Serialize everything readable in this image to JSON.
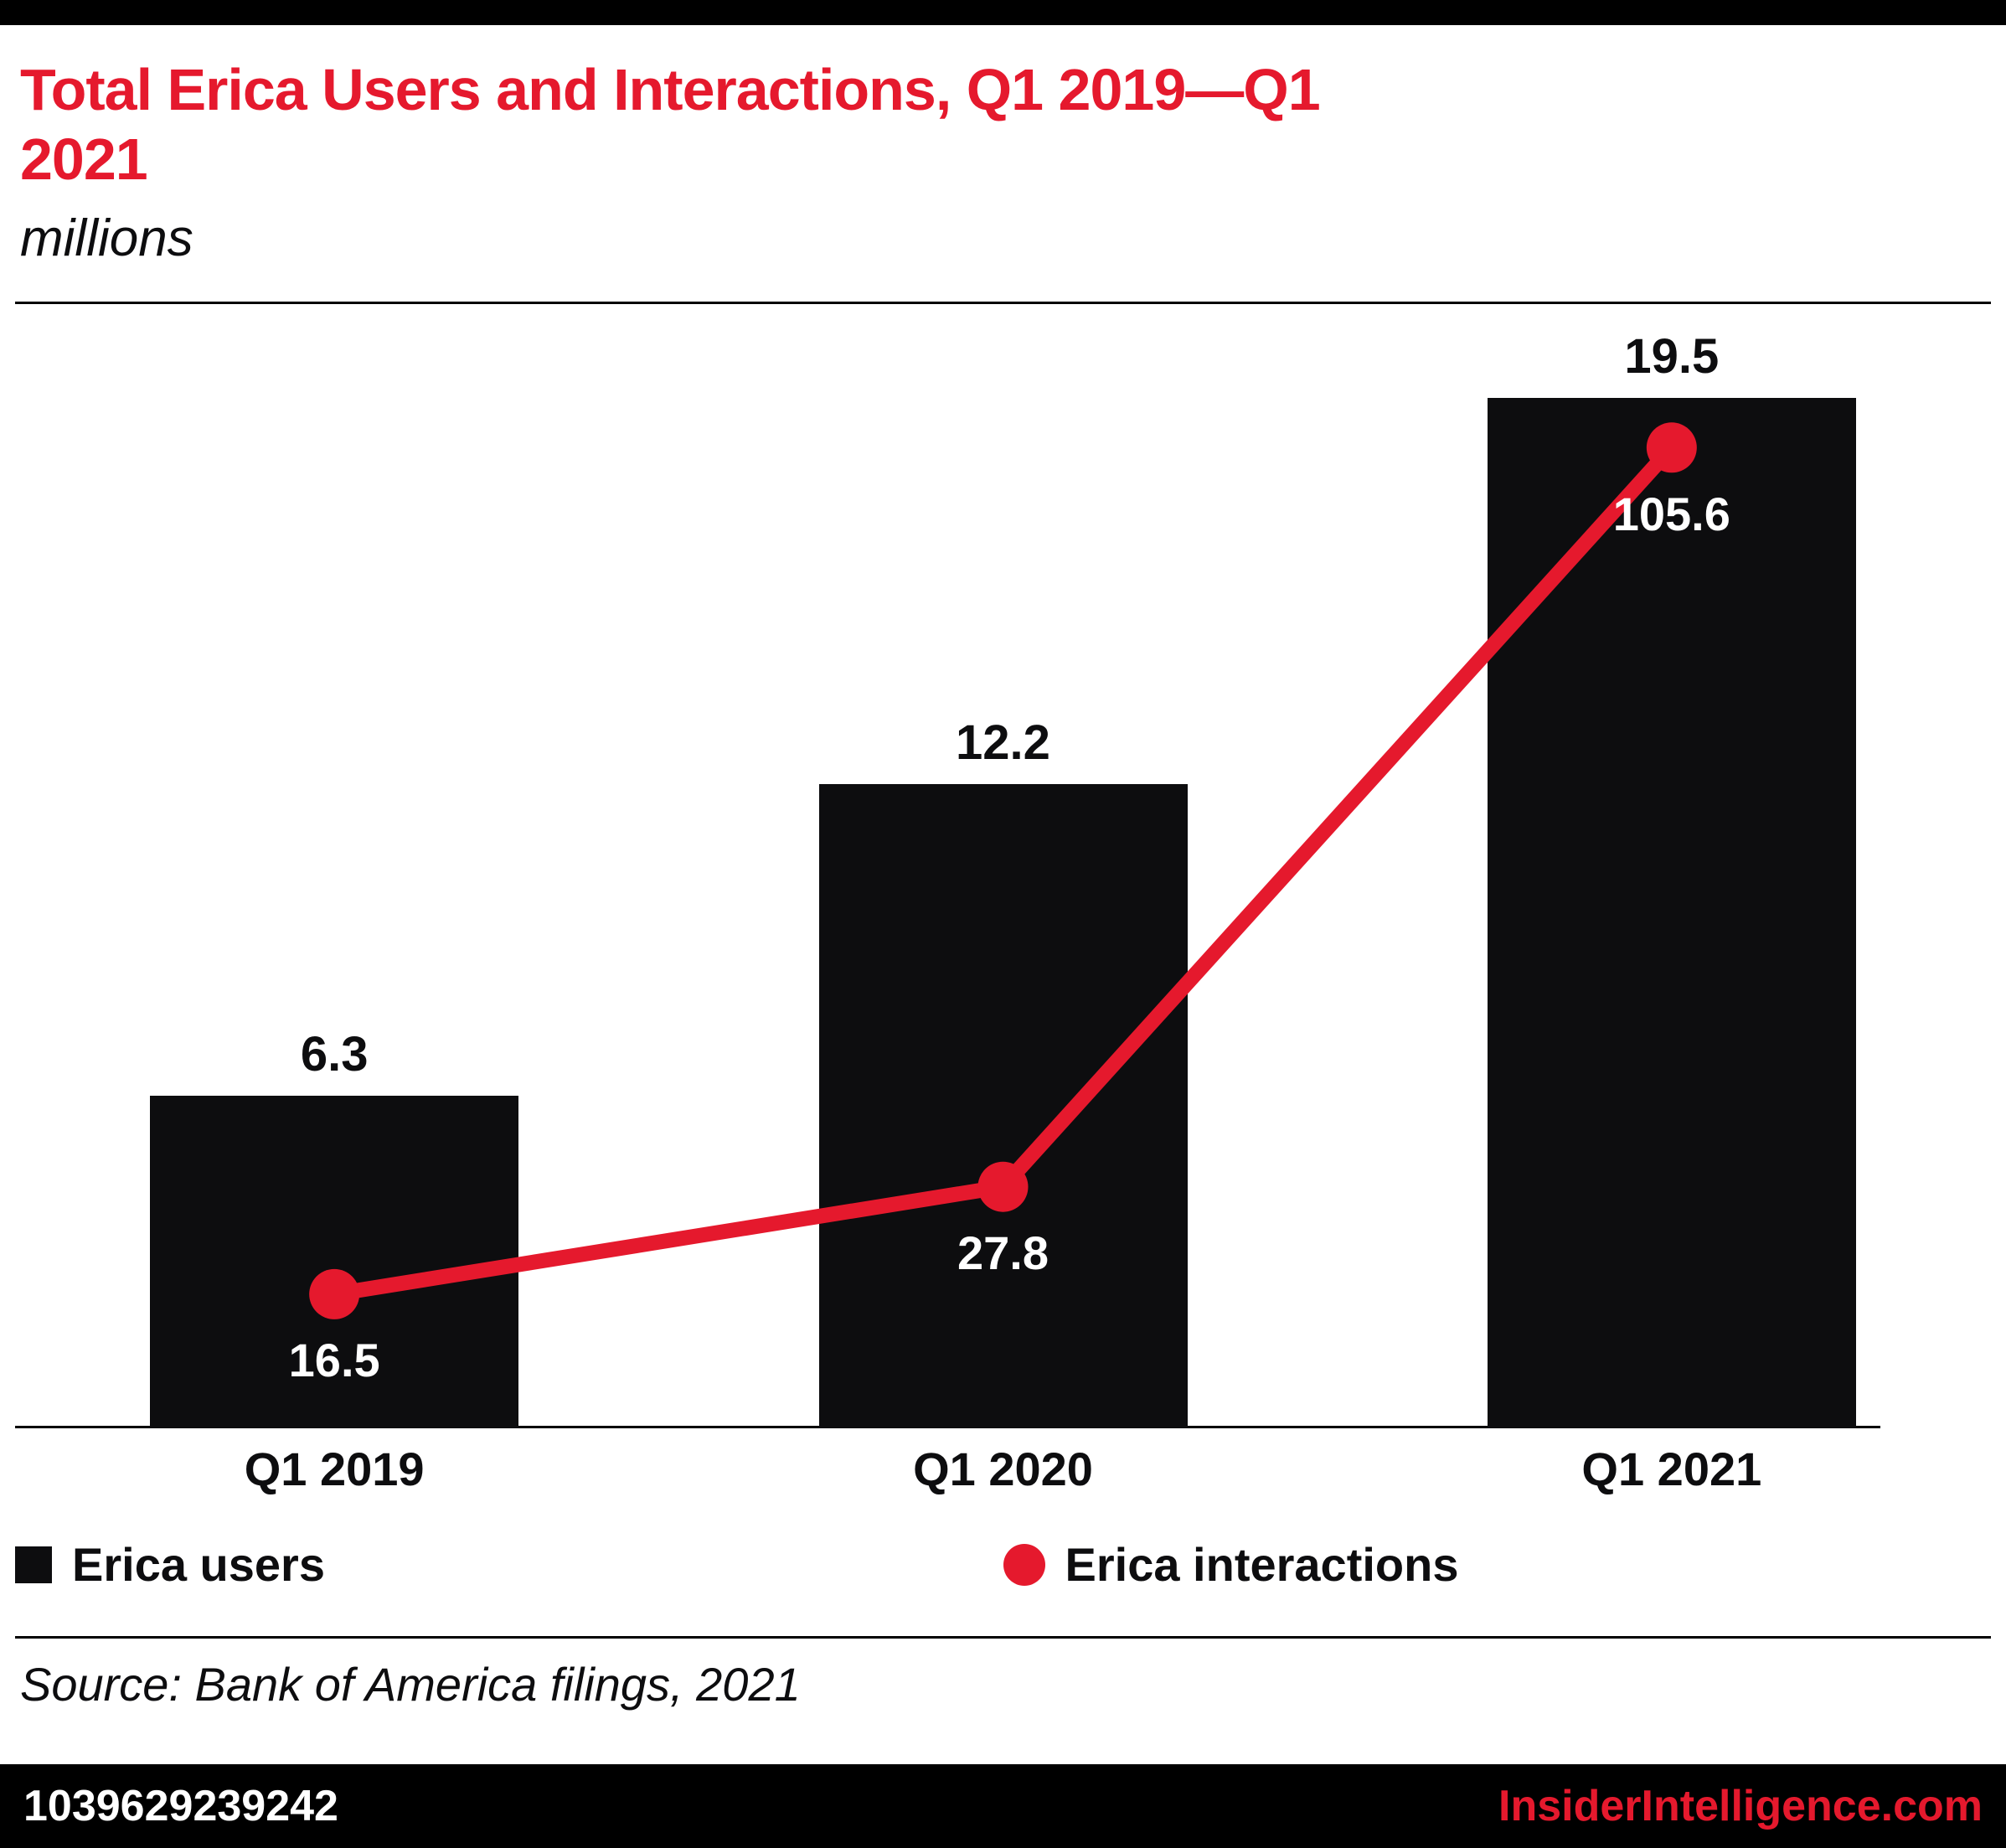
{
  "header": {
    "title": "Total Erica Users and Interactions, Q1 2019—Q1 2021",
    "subtitle": "millions"
  },
  "chart_data": {
    "type": "bar",
    "title": "Total Erica Users and Interactions, Q1 2019—Q1 2021",
    "units_note": "millions",
    "categories": [
      "Q1 2019",
      "Q1 2020",
      "Q1 2021"
    ],
    "series": [
      {
        "name": "Erica users",
        "type": "bar",
        "color": "#0d0d0f",
        "values": [
          6.3,
          12.2,
          19.5
        ],
        "ylim": [
          0,
          20.6
        ]
      },
      {
        "name": "Erica interactions",
        "type": "line",
        "color": "#e5192d",
        "values": [
          16.5,
          27.8,
          105.6
        ],
        "ylim": [
          0,
          117
        ]
      }
    ],
    "grid": false,
    "legend_position": "bottom",
    "value_labels": true
  },
  "legend": {
    "users_label": "Erica users",
    "interactions_label": "Erica interactions"
  },
  "source": {
    "text": "Source: Bank of America filings, 2021"
  },
  "footer": {
    "id": "1039629239242",
    "site": "InsiderIntelligence.com"
  },
  "colors": {
    "accent_red": "#e5192d",
    "bar_black": "#0d0d0f"
  }
}
